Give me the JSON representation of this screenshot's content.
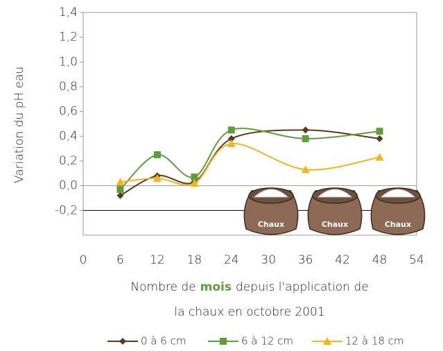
{
  "chart_data": {
    "type": "line",
    "y_label": "Variation du pH eau",
    "x_label": {
      "before": "Nombre de",
      "highlight": "mois",
      "after": "depuis l'application de",
      "line2": "la chaux en octobre 2001"
    },
    "x": [
      6,
      12,
      18,
      24,
      36,
      48
    ],
    "series": [
      {
        "name": "0 à 6 cm",
        "color": "#5b3a1f",
        "marker": "diamond",
        "values": [
          -0.08,
          0.08,
          0.03,
          0.38,
          0.45,
          0.38
        ]
      },
      {
        "name": "6 à 12 cm",
        "color": "#5e9e3a",
        "marker": "square",
        "values": [
          -0.03,
          0.25,
          0.07,
          0.45,
          0.38,
          0.44
        ]
      },
      {
        "name": "12 à 18 cm",
        "color": "#f4b41e",
        "marker": "triangle",
        "values": [
          0.03,
          0.06,
          0.02,
          0.34,
          0.13,
          0.23
        ]
      }
    ],
    "xlim": [
      0,
      54
    ],
    "xticks": [
      0,
      6,
      12,
      18,
      24,
      30,
      36,
      42,
      48,
      54
    ],
    "ylim": [
      -0.4,
      1.4
    ],
    "yticks": [
      {
        "value": 1.4,
        "label": "1,4"
      },
      {
        "value": 1.2,
        "label": "1,2"
      },
      {
        "value": 1.0,
        "label": "1,0"
      },
      {
        "value": 0.8,
        "label": "0,8"
      },
      {
        "value": 0.6,
        "label": "0,6"
      },
      {
        "value": 0.4,
        "label": "0,4"
      },
      {
        "value": 0.2,
        "label": "0,2"
      },
      {
        "value": 0.0,
        "label": "0,0"
      },
      {
        "value": -0.2,
        "label": "-0,2"
      }
    ],
    "annotations": [
      "Chaux",
      "Chaux",
      "Chaux"
    ]
  }
}
